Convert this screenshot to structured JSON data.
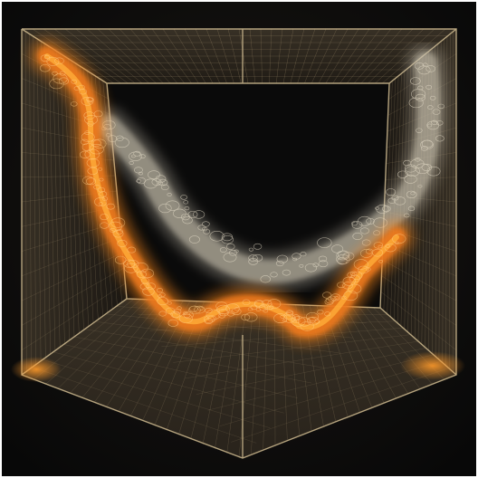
{
  "image": {
    "subject": "wireframe-cube-with-flowing-ribbons",
    "palette": {
      "background": "#0d0d0d",
      "border": "#ffffff",
      "mesh": "#b8a27a",
      "mesh_bright": "#d8c49a",
      "ribbon_orange": "#f07a1e",
      "ribbon_glow": "#ffae3a",
      "ribbon_grey": "#bdb6a6"
    },
    "icons": [
      "wireframe-cube-icon",
      "orange-ribbon-icon",
      "grey-ribbon-icon"
    ]
  }
}
